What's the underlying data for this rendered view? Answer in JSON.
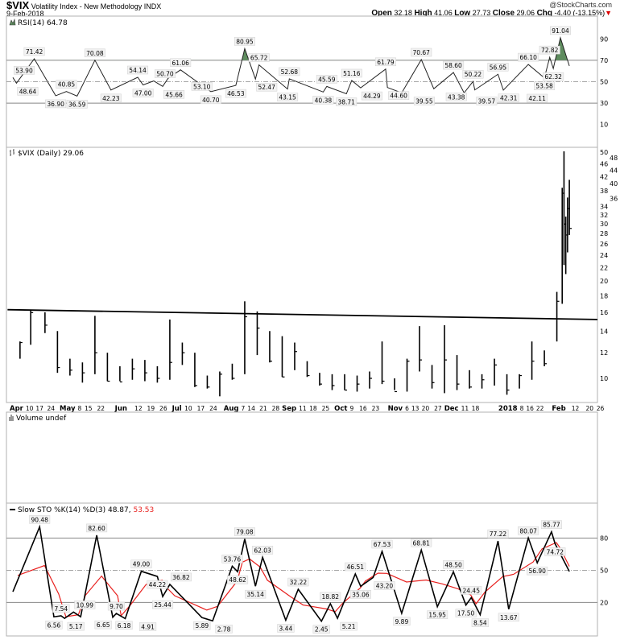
{
  "header": {
    "symbol": "$VIX",
    "name": "Volatility Index - New Methodology",
    "exchange": "INDX",
    "date": "9-Feb-2018",
    "brand": "@StockCharts.com",
    "open_label": "Open",
    "open": "32.18",
    "high_label": "High",
    "high": "41.06",
    "low_label": "Low",
    "low": "27.73",
    "close_label": "Close",
    "close": "29.06",
    "chg_label": "Chg",
    "chg": "-4.40 (-13.15%)",
    "chg_arrow": "▼"
  },
  "colors": {
    "price": "#000000",
    "k_line": "#000000",
    "d_line": "#e8201e",
    "rsi_fill": "#5e8c5e",
    "grid": "#999999",
    "border": "#b0b0b0"
  },
  "chart_data": [
    {
      "type": "line",
      "title": "RSI(14) 64.78",
      "icon": "rsi-icon",
      "yticks": [
        90,
        70,
        50,
        30,
        10
      ],
      "ylim": [
        0,
        100
      ],
      "reference_lines": [
        70,
        50,
        30
      ],
      "fill_above": 70,
      "points": [
        [
          "2017-04-03",
          53.9
        ],
        [
          "2017-04-05",
          48.64
        ],
        [
          "2017-04-15",
          71.42
        ],
        [
          "2017-04-27",
          36.9
        ],
        [
          "2017-05-03",
          40.85
        ],
        [
          "2017-05-09",
          36.59
        ],
        [
          "2017-05-19",
          70.08
        ],
        [
          "2017-05-28",
          42.23
        ],
        [
          "2017-06-12",
          54.14
        ],
        [
          "2017-06-15",
          47.0
        ],
        [
          "2017-06-21",
          50.7
        ],
        [
          "2017-06-26",
          45.66
        ],
        [
          "2017-06-29",
          53.1
        ],
        [
          "2017-07-06",
          61.06
        ],
        [
          "2017-07-23",
          40.7
        ],
        [
          "2017-08-06",
          46.53
        ],
        [
          "2017-08-11",
          80.95
        ],
        [
          "2017-08-17",
          52.47
        ],
        [
          "2017-08-19",
          65.72
        ],
        [
          "2017-09-04",
          43.15
        ],
        [
          "2017-09-05",
          52.68
        ],
        [
          "2017-09-24",
          40.38
        ],
        [
          "2017-09-26",
          45.59
        ],
        [
          "2017-10-07",
          38.71
        ],
        [
          "2017-10-10",
          51.16
        ],
        [
          "2017-10-15",
          44.29
        ],
        [
          "2017-10-29",
          61.79
        ],
        [
          "2017-10-30",
          44.6
        ],
        [
          "2017-11-07",
          39.55
        ],
        [
          "2017-11-18",
          70.67
        ],
        [
          "2017-11-25",
          43.38
        ],
        [
          "2017-12-06",
          58.6
        ],
        [
          "2017-12-12",
          39.57
        ],
        [
          "2017-12-17",
          50.22
        ],
        [
          "2017-12-18",
          42.31
        ],
        [
          "2017-12-31",
          56.95
        ],
        [
          "2018-01-03",
          42.11
        ],
        [
          "2018-01-17",
          66.1
        ],
        [
          "2018-01-26",
          53.58
        ],
        [
          "2018-01-29",
          72.82
        ],
        [
          "2018-01-31",
          62.32
        ],
        [
          "2018-02-04",
          91.04
        ],
        [
          "2018-02-09",
          64.78
        ]
      ]
    },
    {
      "type": "ohlc",
      "title": "$VIX (Daily) 29.06",
      "icon": "price-icon",
      "yscale": "log",
      "ylim": [
        8,
        51
      ],
      "yticks": [
        50,
        48,
        46,
        44,
        42,
        40,
        38,
        36,
        34,
        32,
        30,
        28,
        26,
        24,
        22,
        20,
        18,
        16,
        14,
        12,
        10
      ],
      "trendline": [
        [
          "2017-03-31",
          16.3
        ],
        [
          "2018-02-26",
          15.2
        ]
      ],
      "bars": [
        [
          "2017-04-07",
          13.0,
          11.5,
          12.9
        ],
        [
          "2017-04-13",
          16.3,
          12.7,
          15.96
        ],
        [
          "2017-04-21",
          16.0,
          13.8,
          14.6
        ],
        [
          "2017-04-28",
          14.0,
          10.4,
          10.8
        ],
        [
          "2017-05-05",
          11.5,
          10.2,
          10.6
        ],
        [
          "2017-05-12",
          11.2,
          9.7,
          10.4
        ],
        [
          "2017-05-19",
          15.6,
          10.3,
          12.0
        ],
        [
          "2017-05-26",
          12.0,
          9.8,
          9.8
        ],
        [
          "2017-06-02",
          10.9,
          9.8,
          9.75
        ],
        [
          "2017-06-09",
          11.5,
          9.9,
          10.7
        ],
        [
          "2017-06-16",
          11.4,
          9.8,
          10.4
        ],
        [
          "2017-06-23",
          10.9,
          9.7,
          10.0
        ],
        [
          "2017-06-30",
          15.2,
          9.9,
          11.2
        ],
        [
          "2017-07-07",
          12.9,
          11.0,
          12.0
        ],
        [
          "2017-07-14",
          12.0,
          9.4,
          9.5
        ],
        [
          "2017-07-21",
          10.2,
          9.3,
          9.4
        ],
        [
          "2017-07-28",
          10.5,
          8.8,
          10.3
        ],
        [
          "2017-08-04",
          11.1,
          9.9,
          10.0
        ],
        [
          "2017-08-11",
          17.3,
          10.3,
          15.5
        ],
        [
          "2017-08-18",
          16.1,
          11.8,
          14.3
        ],
        [
          "2017-08-25",
          14.0,
          11.2,
          11.3
        ],
        [
          "2017-09-01",
          13.5,
          10.1,
          10.1
        ],
        [
          "2017-09-08",
          12.9,
          10.6,
          12.1
        ],
        [
          "2017-09-15",
          11.3,
          10.1,
          10.2
        ],
        [
          "2017-09-22",
          10.4,
          9.5,
          9.6
        ],
        [
          "2017-09-29",
          10.3,
          9.2,
          9.5
        ],
        [
          "2017-10-06",
          10.3,
          9.2,
          9.2
        ],
        [
          "2017-10-13",
          10.2,
          9.1,
          9.6
        ],
        [
          "2017-10-20",
          10.5,
          9.3,
          10.0
        ],
        [
          "2017-10-27",
          13.0,
          9.6,
          9.8
        ],
        [
          "2017-11-03",
          10.0,
          9.2,
          9.1
        ],
        [
          "2017-11-10",
          11.5,
          9.1,
          11.3
        ],
        [
          "2017-11-17",
          14.5,
          10.5,
          11.4
        ],
        [
          "2017-11-24",
          11.0,
          9.3,
          9.7
        ],
        [
          "2017-12-01",
          14.6,
          9.0,
          11.4
        ],
        [
          "2017-12-08",
          11.8,
          9.2,
          9.6
        ],
        [
          "2017-12-15",
          10.6,
          9.3,
          9.4
        ],
        [
          "2017-12-22",
          10.3,
          9.3,
          9.9
        ],
        [
          "2017-12-29",
          11.5,
          9.5,
          11.0
        ],
        [
          "2018-01-05",
          10.3,
          8.9,
          9.2
        ],
        [
          "2018-01-12",
          10.3,
          9.3,
          10.2
        ],
        [
          "2018-01-19",
          13.0,
          9.9,
          11.3
        ],
        [
          "2018-01-26",
          12.2,
          10.9,
          11.1
        ],
        [
          "2018-02-02",
          18.5,
          13.0,
          17.3
        ],
        [
          "2018-02-05",
          38.8,
          17.0,
          37.32
        ],
        [
          "2018-02-06",
          50.3,
          22.4,
          29.98
        ],
        [
          "2018-02-07",
          31.6,
          21.0,
          27.73
        ],
        [
          "2018-02-08",
          36.2,
          24.5,
          33.46
        ],
        [
          "2018-02-09",
          41.06,
          27.73,
          29.06
        ]
      ]
    },
    {
      "type": "bar",
      "title": "Volume undef",
      "icon": "volume-icon",
      "values": []
    },
    {
      "type": "line",
      "title_prefix": "Slow STO %K(14) %D(3) 48.87,",
      "title_d": "53.53",
      "icon": "legend-line-icon",
      "yticks": [
        80,
        50,
        20
      ],
      "ylim": [
        0,
        100
      ],
      "reference_lines": [
        80,
        50,
        20
      ],
      "series": [
        {
          "name": "%K(14)",
          "color": "#000000"
        },
        {
          "name": "%D(3)",
          "color": "#e8201e"
        }
      ],
      "points": [
        [
          "2017-04-03",
          30.0
        ],
        [
          "2017-04-18",
          90.48
        ],
        [
          "2017-04-26",
          6.56
        ],
        [
          "2017-04-30",
          7.54
        ],
        [
          "2017-05-02",
          5.17
        ],
        [
          "2017-05-07",
          10.99
        ],
        [
          "2017-05-11",
          6.65
        ],
        [
          "2017-05-20",
          82.6
        ],
        [
          "2017-05-29",
          6.18
        ],
        [
          "2017-05-31",
          9.7
        ],
        [
          "2017-06-05",
          4.91
        ],
        [
          "2017-06-14",
          49.0
        ],
        [
          "2017-06-23",
          44.22
        ],
        [
          "2017-06-26",
          25.44
        ],
        [
          "2017-06-30",
          36.82
        ],
        [
          "2017-07-18",
          5.89
        ],
        [
          "2017-07-24",
          2.78
        ],
        [
          "2017-08-04",
          53.76
        ],
        [
          "2017-08-07",
          48.62
        ],
        [
          "2017-08-11",
          79.08
        ],
        [
          "2017-08-17",
          35.14
        ],
        [
          "2017-08-21",
          62.03
        ],
        [
          "2017-09-03",
          3.44
        ],
        [
          "2017-09-10",
          32.22
        ],
        [
          "2017-09-23",
          2.45
        ],
        [
          "2017-09-28",
          18.82
        ],
        [
          "2017-10-02",
          5.21
        ],
        [
          "2017-10-12",
          46.51
        ],
        [
          "2017-10-15",
          35.06
        ],
        [
          "2017-10-22",
          43.2
        ],
        [
          "2017-10-27",
          67.53
        ],
        [
          "2017-11-07",
          9.89
        ],
        [
          "2017-11-18",
          68.81
        ],
        [
          "2017-11-27",
          15.95
        ],
        [
          "2017-12-06",
          48.5
        ],
        [
          "2017-12-13",
          17.5
        ],
        [
          "2017-12-16",
          24.45
        ],
        [
          "2017-12-21",
          8.54
        ],
        [
          "2017-12-31",
          77.22
        ],
        [
          "2018-01-06",
          13.67
        ],
        [
          "2018-01-17",
          80.07
        ],
        [
          "2018-01-22",
          56.9
        ],
        [
          "2018-01-30",
          85.77
        ],
        [
          "2018-02-01",
          74.72
        ],
        [
          "2018-02-09",
          48.87
        ]
      ]
    }
  ],
  "x_axis": {
    "ticks": [
      [
        "2017-04-03",
        "Apr",
        true
      ],
      [
        "2017-04-10",
        "10",
        false
      ],
      [
        "2017-04-17",
        "17",
        false
      ],
      [
        "2017-04-24",
        "24",
        false
      ],
      [
        "2017-05-01",
        "May",
        true
      ],
      [
        "2017-05-08",
        "8",
        false
      ],
      [
        "2017-05-15",
        "15",
        false
      ],
      [
        "2017-05-22",
        "22",
        false
      ],
      [
        "2017-06-01",
        "Jun",
        true
      ],
      [
        "2017-06-12",
        "12",
        false
      ],
      [
        "2017-06-19",
        "19",
        false
      ],
      [
        "2017-06-26",
        "26",
        false
      ],
      [
        "2017-07-03",
        "Jul",
        true
      ],
      [
        "2017-07-10",
        "10",
        false
      ],
      [
        "2017-07-17",
        "17",
        false
      ],
      [
        "2017-07-24",
        "24",
        false
      ],
      [
        "2017-08-01",
        "Aug",
        true
      ],
      [
        "2017-08-07",
        "7",
        false
      ],
      [
        "2017-08-14",
        "14",
        false
      ],
      [
        "2017-08-21",
        "21",
        false
      ],
      [
        "2017-08-28",
        "28",
        false
      ],
      [
        "2017-09-01",
        "Sep",
        true
      ],
      [
        "2017-09-11",
        "11",
        false
      ],
      [
        "2017-09-18",
        "18",
        false
      ],
      [
        "2017-09-25",
        "25",
        false
      ],
      [
        "2017-10-02",
        "Oct",
        true
      ],
      [
        "2017-10-09",
        "9",
        false
      ],
      [
        "2017-10-16",
        "16",
        false
      ],
      [
        "2017-10-23",
        "23",
        false
      ],
      [
        "2017-11-01",
        "Nov",
        true
      ],
      [
        "2017-11-06",
        "6",
        false
      ],
      [
        "2017-11-13",
        "13",
        false
      ],
      [
        "2017-11-20",
        "20",
        false
      ],
      [
        "2017-11-27",
        "27",
        false
      ],
      [
        "2017-12-01",
        "Dec",
        true
      ],
      [
        "2017-12-11",
        "11",
        false
      ],
      [
        "2017-12-18",
        "18",
        false
      ],
      [
        "2018-01-02",
        "2018",
        true
      ],
      [
        "2018-01-08",
        "8",
        false
      ],
      [
        "2018-01-16",
        "16",
        false
      ],
      [
        "2018-01-22",
        "22",
        false
      ],
      [
        "2018-02-01",
        "Feb",
        true
      ],
      [
        "2018-02-12",
        "12",
        false
      ],
      [
        "2018-02-20",
        "20",
        false
      ],
      [
        "2018-02-26",
        "26",
        false
      ]
    ]
  }
}
